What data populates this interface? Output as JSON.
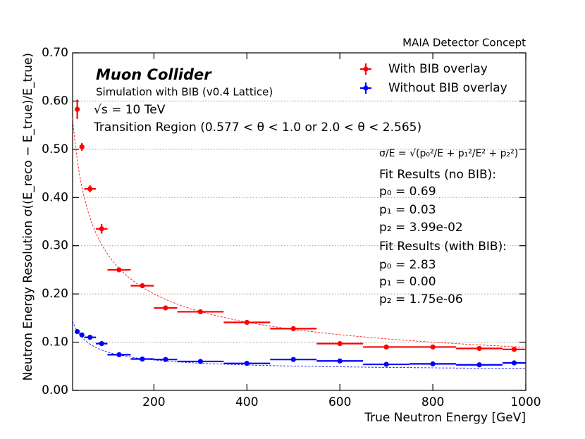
{
  "chart_data": {
    "type": "errorbar",
    "header": "MAIA Detector Concept",
    "title": "Muon Collider",
    "subtitle": "Simulation with BIB (v0.4 Lattice)",
    "energy_label": "√s = 10 TeV",
    "region_label": "Transition Region (0.577 < θ < 1.0 or 2.0 < θ < 2.565)",
    "xlabel": "True Neutron Energy [GeV]",
    "ylabel": "Neutron Energy Resolution σ((E_reco − E_true)/E_true)",
    "xlim": [
      25,
      1000
    ],
    "ylim": [
      0,
      0.7
    ],
    "xticks": [
      200,
      400,
      600,
      800,
      1000
    ],
    "yticks": [
      {
        "value": 0,
        "label": "0.00"
      },
      {
        "value": 0.1,
        "label": "0.10"
      },
      {
        "value": 0.2,
        "label": "0.20"
      },
      {
        "value": 0.3,
        "label": "0.30"
      },
      {
        "value": 0.4,
        "label": "0.40"
      },
      {
        "value": 0.5,
        "label": "0.50"
      },
      {
        "value": 0.6,
        "label": "0.60"
      },
      {
        "value": 0.7,
        "label": "0.70"
      }
    ],
    "grid": true,
    "legend": "upper right",
    "series": [
      {
        "name": "With BIB overlay",
        "color": "#ff0000",
        "x": [
          35,
          45,
          62.5,
          87.5,
          125,
          175,
          225,
          300,
          400,
          500,
          600,
          700,
          800,
          900,
          975
        ],
        "xerr": [
          5,
          5,
          12.5,
          12.5,
          25,
          25,
          25,
          50,
          50,
          50,
          50,
          50,
          50,
          50,
          25
        ],
        "values": [
          0.583,
          0.505,
          0.418,
          0.335,
          0.25,
          0.217,
          0.171,
          0.163,
          0.141,
          0.128,
          0.097,
          0.09,
          0.09,
          0.087,
          0.085
        ],
        "errors": [
          0.02,
          0.008,
          0.007,
          0.01,
          0.004,
          0.003,
          0.003,
          0.002,
          0.002,
          0.002,
          0.002,
          0.002,
          0.002,
          0.002,
          0.003
        ],
        "fit": {
          "p0": 2.83,
          "p1": 0.0,
          "p2": 1.75e-06
        }
      },
      {
        "name": "Without BIB overlay",
        "color": "#0000ff",
        "x": [
          35,
          45,
          62.5,
          87.5,
          125,
          175,
          225,
          300,
          400,
          500,
          600,
          700,
          800,
          900,
          975
        ],
        "xerr": [
          5,
          5,
          12.5,
          12.5,
          25,
          25,
          25,
          50,
          50,
          50,
          50,
          50,
          50,
          50,
          25
        ],
        "values": [
          0.122,
          0.115,
          0.11,
          0.097,
          0.074,
          0.065,
          0.064,
          0.06,
          0.056,
          0.064,
          0.061,
          0.054,
          0.055,
          0.053,
          0.057
        ],
        "errors": [
          0.003,
          0.003,
          0.003,
          0.003,
          0.002,
          0.002,
          0.002,
          0.002,
          0.002,
          0.002,
          0.002,
          0.002,
          0.002,
          0.002,
          0.002
        ],
        "fit": {
          "p0": 0.69,
          "p1": 0.03,
          "p2": 0.0399
        }
      }
    ],
    "annotations": [
      {
        "text": "σ/E = √(p₀²/E + p₁²/E² + p₂²)",
        "color": "#000000"
      },
      {
        "text": "Fit Results (no BIB):",
        "color": "#000000"
      },
      {
        "text": "p₀ = 0.69",
        "color": "#0000ff"
      },
      {
        "text": "p₁ = 0.03",
        "color": "#0000ff"
      },
      {
        "text": "p₂ = 3.99e-02",
        "color": "#0000ff"
      },
      {
        "text": "Fit Results (with BIB):",
        "color": "#000000"
      },
      {
        "text": "p₀ = 2.83",
        "color": "#ff0000"
      },
      {
        "text": "p₁ = 0.00",
        "color": "#ff0000"
      },
      {
        "text": "p₂ = 1.75e-06",
        "color": "#ff0000"
      }
    ]
  }
}
